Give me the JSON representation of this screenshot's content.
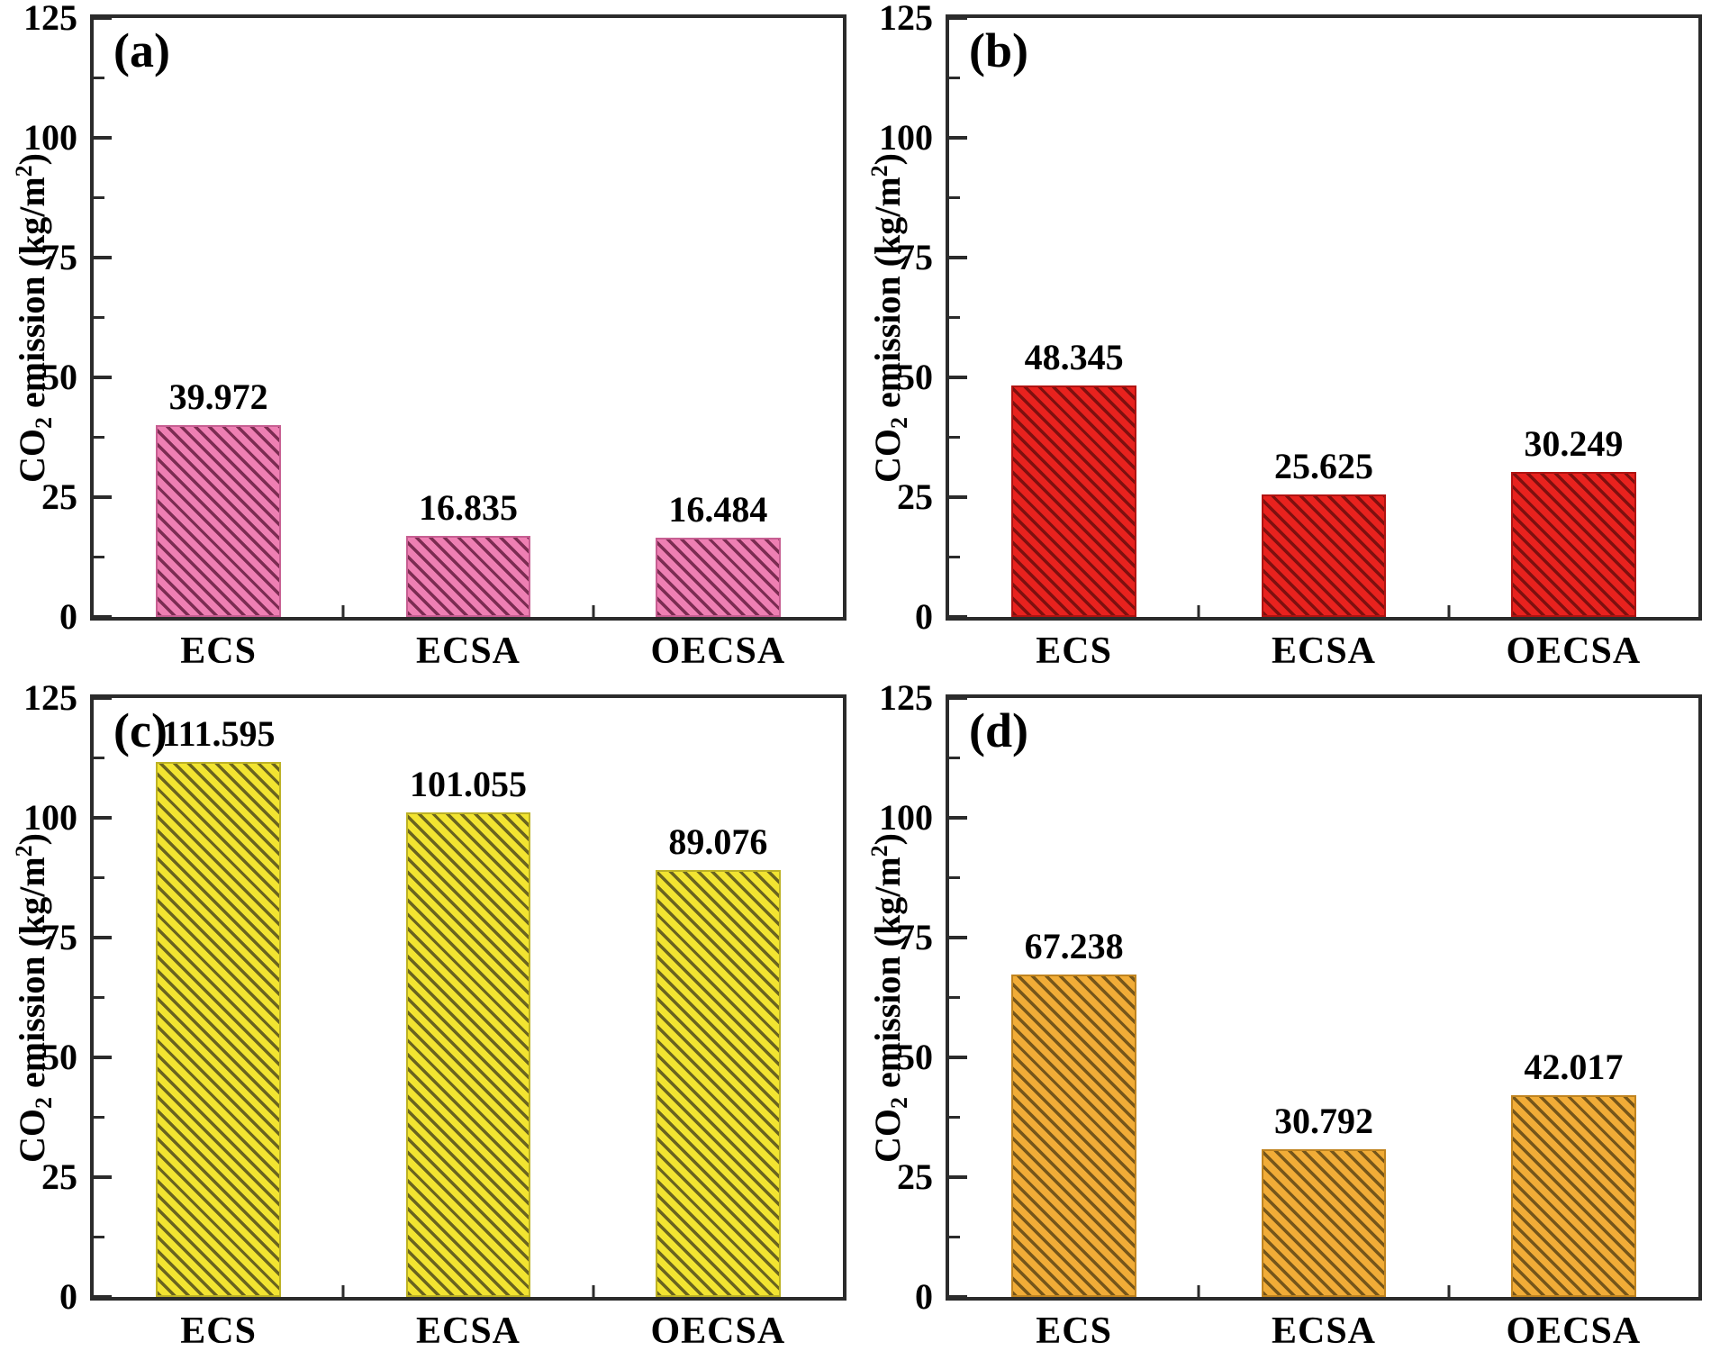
{
  "figure": {
    "background": "#ffffff",
    "axis_color": "#2b2b2b",
    "text_color": "#000000"
  },
  "axis": {
    "ylabel": {
      "pre": "CO",
      "sub": "2",
      "mid": " emission (kg/m",
      "sup": "2",
      "post": ")"
    },
    "ylim": [
      0,
      125
    ],
    "yticks": [
      0,
      25,
      50,
      75,
      100,
      125
    ],
    "minor_yticks": [
      12.5,
      37.5,
      62.5,
      87.5,
      112.5
    ],
    "grid": "off",
    "tick_direction": "in"
  },
  "chart_data": [
    {
      "type": "bar",
      "panel_label": "(a)",
      "ylabel": "CO2 emission (kg/m2)",
      "categories": [
        "ECS",
        "ECSA",
        "OECSA"
      ],
      "values": [
        39.972,
        16.835,
        16.484
      ],
      "value_labels": [
        "39.972",
        "16.835",
        "16.484"
      ],
      "ylim": [
        0,
        125
      ],
      "hatch": "backslash-diagonal",
      "bar_fill": "#ee7fb3",
      "bar_hatch": "#7c2c52",
      "bar_edge": "#c75f92"
    },
    {
      "type": "bar",
      "panel_label": "(b)",
      "ylabel": "CO2 emission (kg/m2)",
      "categories": [
        "ECS",
        "ECSA",
        "OECSA"
      ],
      "values": [
        48.345,
        25.625,
        30.249
      ],
      "value_labels": [
        "48.345",
        "25.625",
        "30.249"
      ],
      "ylim": [
        0,
        125
      ],
      "hatch": "backslash-diagonal",
      "bar_fill": "#e8221e",
      "bar_hatch": "#7e100f",
      "bar_edge": "#b01311"
    },
    {
      "type": "bar",
      "panel_label": "(c)",
      "ylabel": "CO2 emission (kg/m2)",
      "categories": [
        "ECS",
        "ECSA",
        "OECSA"
      ],
      "values": [
        111.595,
        101.055,
        89.076
      ],
      "value_labels": [
        "111.595",
        "101.055",
        "89.076"
      ],
      "ylim": [
        0,
        125
      ],
      "hatch": "backslash-diagonal",
      "bar_fill": "#f2e431",
      "bar_hatch": "#6a641f",
      "bar_edge": "#bdb226"
    },
    {
      "type": "bar",
      "panel_label": "(d)",
      "ylabel": "CO2 emission (kg/m2)",
      "categories": [
        "ECS",
        "ECSA",
        "OECSA"
      ],
      "values": [
        67.238,
        30.792,
        42.017
      ],
      "value_labels": [
        "67.238",
        "30.792",
        "42.017"
      ],
      "ylim": [
        0,
        125
      ],
      "hatch": "backslash-diagonal",
      "bar_fill": "#f1ac37",
      "bar_hatch": "#76561a",
      "bar_edge": "#c08420"
    }
  ]
}
